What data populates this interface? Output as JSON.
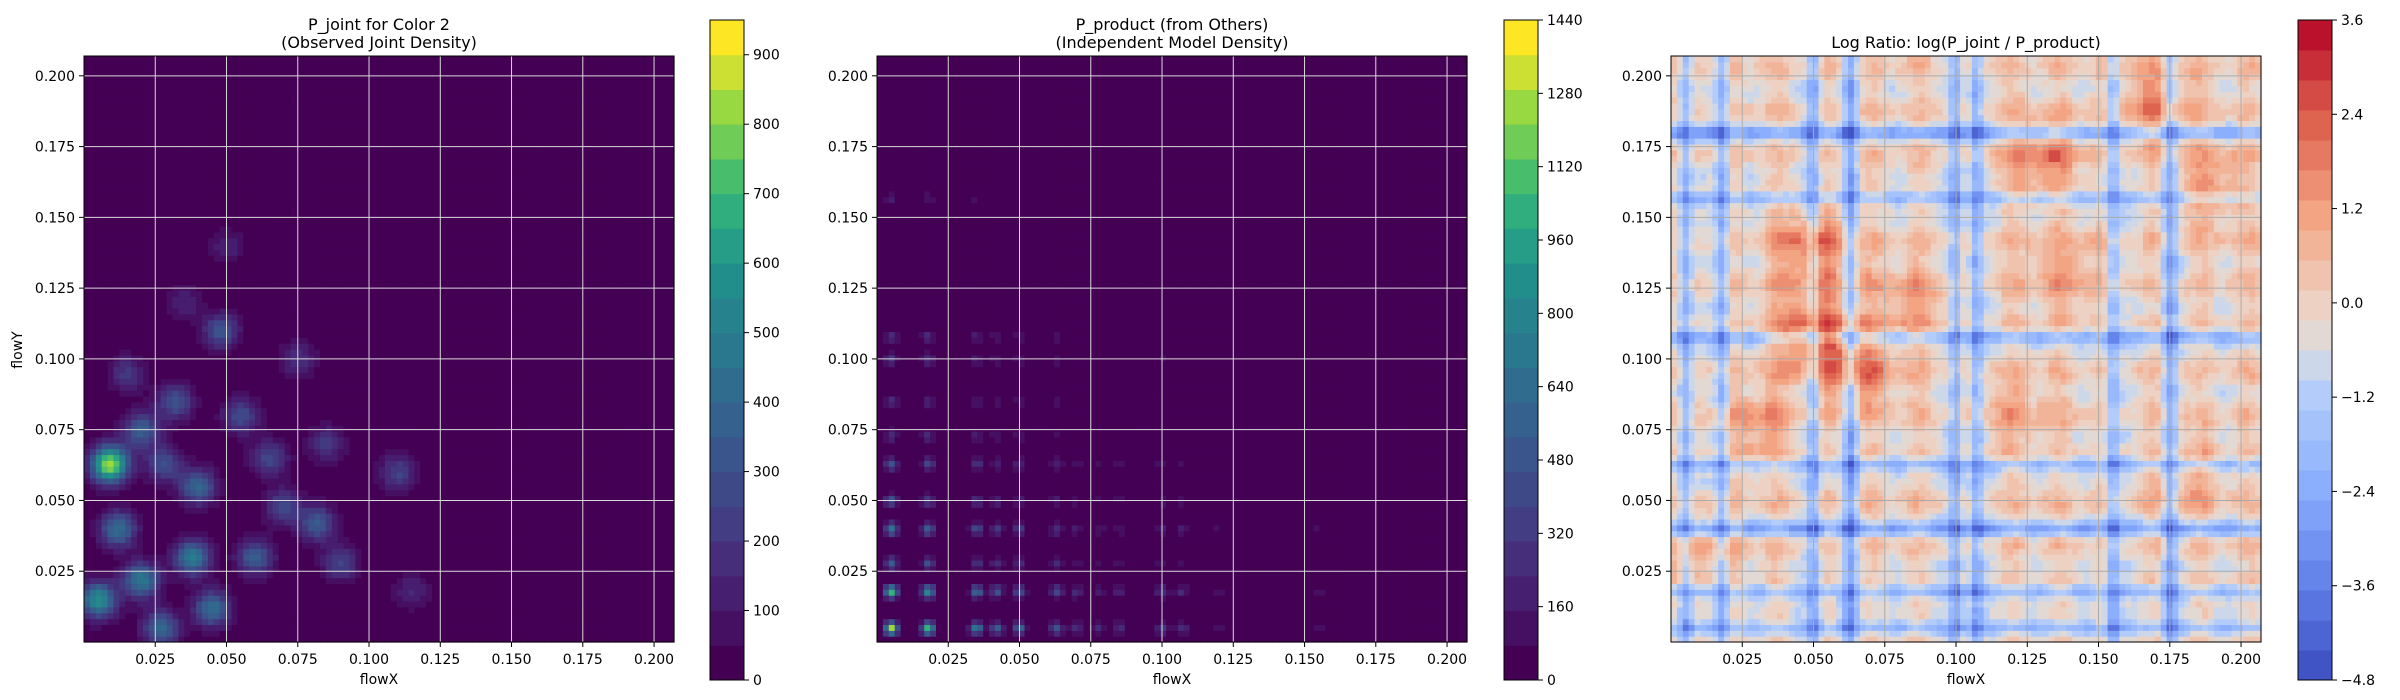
{
  "colors": {
    "viridis_low": "#440154",
    "viridis_high": "#fde725",
    "coolwarm_low": "#3b4cc0",
    "coolwarm_mid": "#dddddd",
    "coolwarm_high": "#b40426",
    "grid": "#d9d9d9"
  },
  "chart_data": [
    {
      "type": "heatmap",
      "title": "P_joint for Color 2",
      "subtitle": "(Observed Joint Density)",
      "xlabel": "flowX",
      "ylabel": "flowY",
      "xlim": [
        0.0,
        0.207
      ],
      "ylim": [
        0.0,
        0.207
      ],
      "xticks": [
        0.025,
        0.05,
        0.075,
        0.1,
        0.125,
        0.15,
        0.175,
        0.2
      ],
      "xtick_labels": [
        "0.025",
        "0.050",
        "0.075",
        "0.100",
        "0.125",
        "0.150",
        "0.175",
        "0.200"
      ],
      "yticks": [
        0.025,
        0.05,
        0.075,
        0.1,
        0.125,
        0.15,
        0.175,
        0.2
      ],
      "ytick_labels": [
        "0.025",
        "0.050",
        "0.075",
        "0.100",
        "0.125",
        "0.150",
        "0.175",
        "0.200"
      ],
      "grid": true,
      "colormap": "viridis",
      "colorbar": {
        "min": 0,
        "max": 950,
        "ticks": [
          0,
          100,
          200,
          300,
          400,
          500,
          600,
          700,
          800,
          900
        ],
        "tick_labels": [
          "0",
          "100",
          "200",
          "300",
          "400",
          "500",
          "600",
          "700",
          "800",
          "900"
        ]
      },
      "hotspots": [
        {
          "x": 0.009,
          "y": 0.063,
          "value": 900
        },
        {
          "x": 0.005,
          "y": 0.015,
          "value": 600
        },
        {
          "x": 0.012,
          "y": 0.04,
          "value": 450
        },
        {
          "x": 0.02,
          "y": 0.022,
          "value": 500
        },
        {
          "x": 0.027,
          "y": 0.005,
          "value": 420
        },
        {
          "x": 0.038,
          "y": 0.03,
          "value": 520
        },
        {
          "x": 0.045,
          "y": 0.012,
          "value": 450
        },
        {
          "x": 0.04,
          "y": 0.055,
          "value": 420
        },
        {
          "x": 0.032,
          "y": 0.085,
          "value": 330
        },
        {
          "x": 0.048,
          "y": 0.11,
          "value": 330
        },
        {
          "x": 0.055,
          "y": 0.08,
          "value": 300
        },
        {
          "x": 0.06,
          "y": 0.03,
          "value": 380
        },
        {
          "x": 0.07,
          "y": 0.048,
          "value": 300
        },
        {
          "x": 0.065,
          "y": 0.065,
          "value": 280
        },
        {
          "x": 0.082,
          "y": 0.042,
          "value": 360
        },
        {
          "x": 0.09,
          "y": 0.028,
          "value": 260
        },
        {
          "x": 0.085,
          "y": 0.07,
          "value": 220
        },
        {
          "x": 0.02,
          "y": 0.075,
          "value": 380
        },
        {
          "x": 0.028,
          "y": 0.063,
          "value": 320
        },
        {
          "x": 0.015,
          "y": 0.095,
          "value": 220
        },
        {
          "x": 0.075,
          "y": 0.1,
          "value": 200
        },
        {
          "x": 0.11,
          "y": 0.06,
          "value": 260
        },
        {
          "x": 0.115,
          "y": 0.018,
          "value": 160
        },
        {
          "x": 0.05,
          "y": 0.14,
          "value": 140
        },
        {
          "x": 0.035,
          "y": 0.12,
          "value": 150
        }
      ]
    },
    {
      "type": "heatmap",
      "title": "P_product (from Others)",
      "subtitle": "(Independent Model Density)",
      "xlabel": "flowX",
      "ylabel": "",
      "xlim": [
        0.0,
        0.207
      ],
      "ylim": [
        0.0,
        0.207
      ],
      "xticks": [
        0.025,
        0.05,
        0.075,
        0.1,
        0.125,
        0.15,
        0.175,
        0.2
      ],
      "xtick_labels": [
        "0.025",
        "0.050",
        "0.075",
        "0.100",
        "0.125",
        "0.150",
        "0.175",
        "0.200"
      ],
      "yticks": [
        0.025,
        0.05,
        0.075,
        0.1,
        0.125,
        0.15,
        0.175,
        0.2
      ],
      "ytick_labels": [
        "0.025",
        "0.050",
        "0.075",
        "0.100",
        "0.125",
        "0.150",
        "0.175",
        "0.200"
      ],
      "grid": true,
      "colormap": "viridis",
      "colorbar": {
        "min": 0,
        "max": 1440,
        "ticks": [
          0,
          160,
          320,
          480,
          640,
          800,
          960,
          1120,
          1280,
          1440
        ],
        "tick_labels": [
          "0",
          "160",
          "320",
          "480",
          "640",
          "800",
          "960",
          "1120",
          "1280",
          "1440"
        ]
      },
      "x_bands": [
        {
          "x": 0.005,
          "w": 1.0
        },
        {
          "x": 0.018,
          "w": 0.9
        },
        {
          "x": 0.035,
          "w": 0.7
        },
        {
          "x": 0.042,
          "w": 0.55
        },
        {
          "x": 0.05,
          "w": 0.6
        },
        {
          "x": 0.063,
          "w": 0.55
        },
        {
          "x": 0.07,
          "w": 0.35
        },
        {
          "x": 0.078,
          "w": 0.3
        },
        {
          "x": 0.085,
          "w": 0.35
        },
        {
          "x": 0.1,
          "w": 0.45
        },
        {
          "x": 0.107,
          "w": 0.4
        },
        {
          "x": 0.12,
          "w": 0.25
        },
        {
          "x": 0.155,
          "w": 0.3
        }
      ],
      "y_bands": [
        {
          "y": 0.005,
          "w": 1.0
        },
        {
          "y": 0.018,
          "w": 0.9
        },
        {
          "y": 0.028,
          "w": 0.5
        },
        {
          "y": 0.04,
          "w": 0.7
        },
        {
          "y": 0.05,
          "w": 0.5
        },
        {
          "y": 0.063,
          "w": 0.55
        },
        {
          "y": 0.073,
          "w": 0.35
        },
        {
          "y": 0.085,
          "w": 0.35
        },
        {
          "y": 0.1,
          "w": 0.45
        },
        {
          "y": 0.108,
          "w": 0.45
        },
        {
          "y": 0.157,
          "w": 0.35
        }
      ],
      "peak": 1440
    },
    {
      "type": "heatmap",
      "title": "Log Ratio: log(P_joint / P_product)",
      "subtitle": "",
      "xlabel": "flowX",
      "ylabel": "",
      "xlim": [
        0.0,
        0.207
      ],
      "ylim": [
        0.0,
        0.207
      ],
      "xticks": [
        0.025,
        0.05,
        0.075,
        0.1,
        0.125,
        0.15,
        0.175,
        0.2
      ],
      "xtick_labels": [
        "0.025",
        "0.050",
        "0.075",
        "0.100",
        "0.125",
        "0.150",
        "0.175",
        "0.200"
      ],
      "yticks": [
        0.025,
        0.05,
        0.075,
        0.1,
        0.125,
        0.15,
        0.175,
        0.2
      ],
      "ytick_labels": [
        "0.025",
        "0.050",
        "0.075",
        "0.100",
        "0.125",
        "0.150",
        "0.175",
        "0.200"
      ],
      "grid": true,
      "colormap": "coolwarm",
      "colorbar": {
        "min": -4.8,
        "max": 3.6,
        "ticks": [
          -4.8,
          -3.6,
          -2.4,
          -1.2,
          0.0,
          1.2,
          2.4,
          3.6
        ],
        "tick_labels": [
          "−4.8",
          "−3.6",
          "−2.4",
          "−1.2",
          "0.0",
          "1.2",
          "2.4",
          "3.6"
        ]
      },
      "cold_x": [
        0.005,
        0.018,
        0.05,
        0.063,
        0.1,
        0.107,
        0.155,
        0.175
      ],
      "cold_y": [
        0.005,
        0.018,
        0.04,
        0.063,
        0.108,
        0.157,
        0.18
      ],
      "warm_regions": [
        {
          "x": 0.05,
          "y": 0.11,
          "value": 2.6
        },
        {
          "x": 0.05,
          "y": 0.14,
          "value": 2.2
        },
        {
          "x": 0.065,
          "y": 0.097,
          "value": 1.8
        },
        {
          "x": 0.13,
          "y": 0.17,
          "value": 1.8
        },
        {
          "x": 0.17,
          "y": 0.19,
          "value": 1.6
        },
        {
          "x": 0.19,
          "y": 0.16,
          "value": 1.4
        },
        {
          "x": 0.03,
          "y": 0.075,
          "value": 1.4
        },
        {
          "x": 0.085,
          "y": 0.12,
          "value": 1.3
        },
        {
          "x": 0.14,
          "y": 0.13,
          "value": 1.2
        },
        {
          "x": 0.12,
          "y": 0.08,
          "value": 1.0
        },
        {
          "x": 0.18,
          "y": 0.06,
          "value": 1.0
        },
        {
          "x": 0.01,
          "y": 0.03,
          "value": 1.2
        }
      ]
    }
  ]
}
